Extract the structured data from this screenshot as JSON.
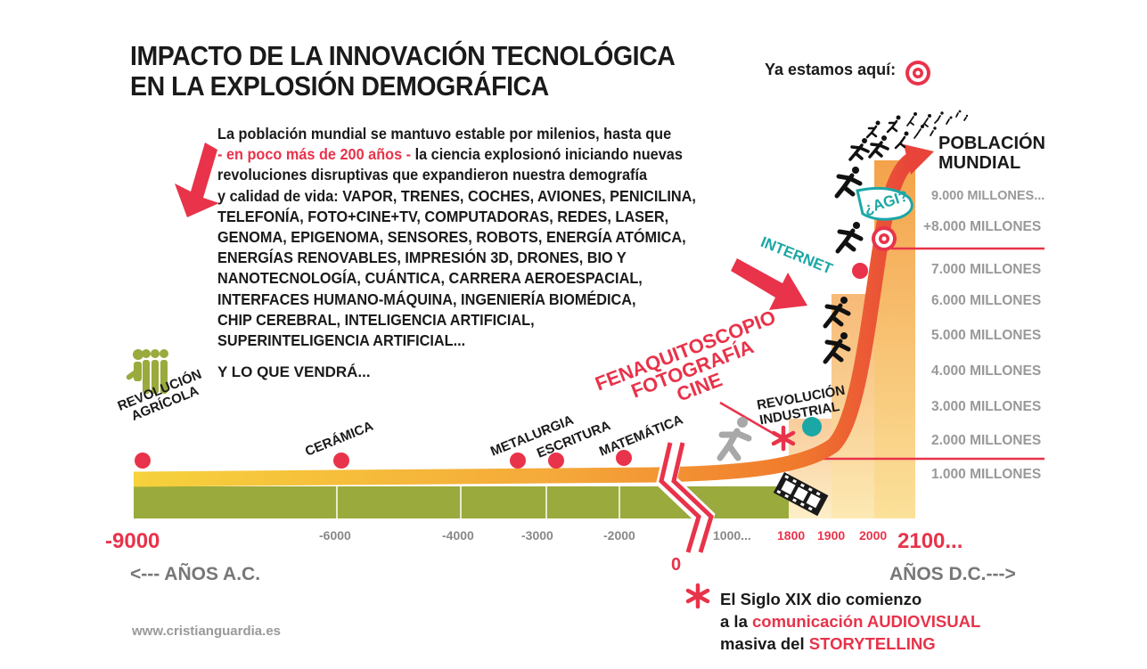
{
  "title": [
    "IMPACTO DE LA INNOVACIÓN TECNOLÓGICA",
    "EN LA EXPLOSIÓN DEMOGRÁFICA"
  ],
  "here_label": "Ya estamos aquí:",
  "body": {
    "line1": "La población mundial se mantuvo estable por milenios, hasta que",
    "highlight": "- en poco más de 200 años -",
    "line2_rest": " la ciencia explosionó iniciando nuevas",
    "lines": [
      "revoluciones disruptivas que expandieron nuestra demografía",
      "y calidad de vida: VAPOR, TRENES, COCHES, AVIONES, PENICILINA,",
      "TELEFONÍA, FOTO+CINE+TV, COMPUTADORAS, REDES, LASER,",
      "GENOMA, EPIGENOMA, SENSORES, ROBOTS, ENERGÍA ATÓMICA,",
      "ENERGÍAS RENOVABLES, IMPRESIÓN 3D, DRONES, BIO Y",
      "NANOTECNOLOGÍA, CUÁNTICA, CARRERA AEROESPACIAL,",
      "INTERFACES HUMANO-MÁQUINA, INGENIERÍA BIOMÉDICA,",
      "CHIP CEREBRAL, INTELIGENCIA ARTIFICIAL,",
      "SUPERINTELIGENCIA ARTIFICIAL..."
    ],
    "more": "Y LO QUE VENDRÁ..."
  },
  "milestones": {
    "agricola": [
      "REVOLUCIÓN",
      "AGRÍCOLA"
    ],
    "ceramica": "CERÁMICA",
    "metalurgia": "METALURGIA",
    "escritura": "ESCRITURA",
    "matematica": "MATEMÁTICA",
    "industrial": [
      "REVOLUCIÓN",
      "INDUSTRIAL"
    ],
    "internet": "INTERNET",
    "agi": "¿AGI?"
  },
  "feno": [
    "FENAQUITOSCOPIO",
    "FOTOGRAFÍA",
    "CINE"
  ],
  "years": {
    "y_9000": "-9000",
    "y_6000": "-6000",
    "y_4000": "-4000",
    "y_3000": "-3000",
    "y_2000": "-2000",
    "y_0": "0",
    "y_1000": "1000...",
    "y_1800": "1800",
    "y_1900": "1900",
    "y_2000p": "2000",
    "y_2100": "2100..."
  },
  "era_bc": "<--- AÑOS A.C.",
  "era_ad": "AÑOS D.C.--->",
  "population": {
    "title": [
      "POBLACIÓN",
      "MUNDIAL"
    ],
    "levels": [
      "9.000 MILLONES...",
      "+8.000 MILLONES",
      "7.000 MILLONES",
      "6.000 MILLONES",
      "5.000 MILLONES",
      "4.000 MILLONES",
      "3.000 MILLONES",
      "2.000 MILLONES",
      "1.000 MILLONES"
    ]
  },
  "credit": "www.cristianguardia.es",
  "note": {
    "line1": "El Siglo XIX dio comienzo",
    "line2_pre": "a la ",
    "line2_red": "comunicación AUDIOVISUAL",
    "line3_pre": "masiva del ",
    "line3_red": "STORYTELLING"
  },
  "colors": {
    "accent": "#e8334a",
    "olive": "#9aaa3c",
    "teal": "#1ba7a6",
    "orange": "#f0702a",
    "yellow": "#f7d23a"
  }
}
